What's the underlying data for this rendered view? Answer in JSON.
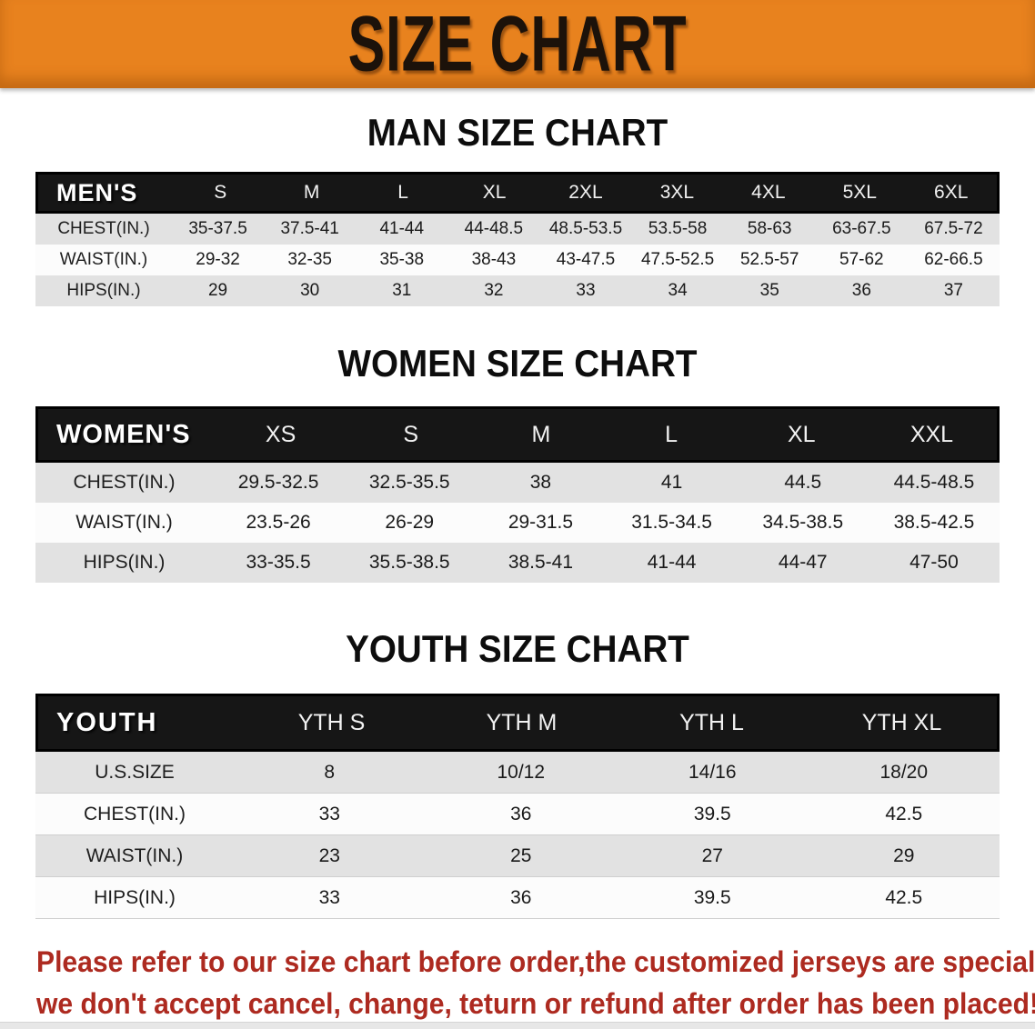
{
  "banner": {
    "title": "SIZE CHART"
  },
  "colors": {
    "banner_bg": "#E8821E",
    "header_bg": "#161616",
    "row_gray": "#E2E2E2",
    "notice_red": "#AD2A20"
  },
  "sections": [
    {
      "title": "MAN SIZE CHART",
      "header_label": "MEN'S",
      "columns": [
        "S",
        "M",
        "L",
        "XL",
        "2XL",
        "3XL",
        "4XL",
        "5XL",
        "6XL"
      ],
      "rows": [
        {
          "label": "CHEST(IN.)",
          "values": [
            "35-37.5",
            "37.5-41",
            "41-44",
            "44-48.5",
            "48.5-53.5",
            "53.5-58",
            "58-63",
            "63-67.5",
            "67.5-72"
          ]
        },
        {
          "label": "WAIST(IN.)",
          "values": [
            "29-32",
            "32-35",
            "35-38",
            "38-43",
            "43-47.5",
            "47.5-52.5",
            "52.5-57",
            "57-62",
            "62-66.5"
          ]
        },
        {
          "label": "HIPS(IN.)",
          "values": [
            "29",
            "30",
            "31",
            "32",
            "33",
            "34",
            "35",
            "36",
            "37"
          ]
        }
      ]
    },
    {
      "title": "WOMEN SIZE CHART",
      "header_label": "WOMEN'S",
      "columns": [
        "XS",
        "S",
        "M",
        "L",
        "XL",
        "XXL"
      ],
      "rows": [
        {
          "label": "CHEST(IN.)",
          "values": [
            "29.5-32.5",
            "32.5-35.5",
            "38",
            "41",
            "44.5",
            "44.5-48.5"
          ]
        },
        {
          "label": "WAIST(IN.)",
          "values": [
            "23.5-26",
            "26-29",
            "29-31.5",
            "31.5-34.5",
            "34.5-38.5",
            "38.5-42.5"
          ]
        },
        {
          "label": "HIPS(IN.)",
          "values": [
            "33-35.5",
            "35.5-38.5",
            "38.5-41",
            "41-44",
            "44-47",
            "47-50"
          ]
        }
      ]
    },
    {
      "title": "YOUTH SIZE CHART",
      "header_label": "YOUTH",
      "columns": [
        "YTH S",
        "YTH M",
        "YTH L",
        "YTH XL"
      ],
      "rows": [
        {
          "label": "U.S.SIZE",
          "values": [
            "8",
            "10/12",
            "14/16",
            "18/20"
          ]
        },
        {
          "label": "CHEST(IN.)",
          "values": [
            "33",
            "36",
            "39.5",
            "42.5"
          ]
        },
        {
          "label": "WAIST(IN.)",
          "values": [
            "23",
            "25",
            "27",
            "29"
          ]
        },
        {
          "label": "HIPS(IN.)",
          "values": [
            "33",
            "36",
            "39.5",
            "42.5"
          ]
        }
      ]
    }
  ],
  "footer": {
    "line1": "Please refer to our size chart before order,the customized jerseys are special products,",
    "line2": "we don't accept cancel, change, teturn or refund after order has been placed!"
  }
}
